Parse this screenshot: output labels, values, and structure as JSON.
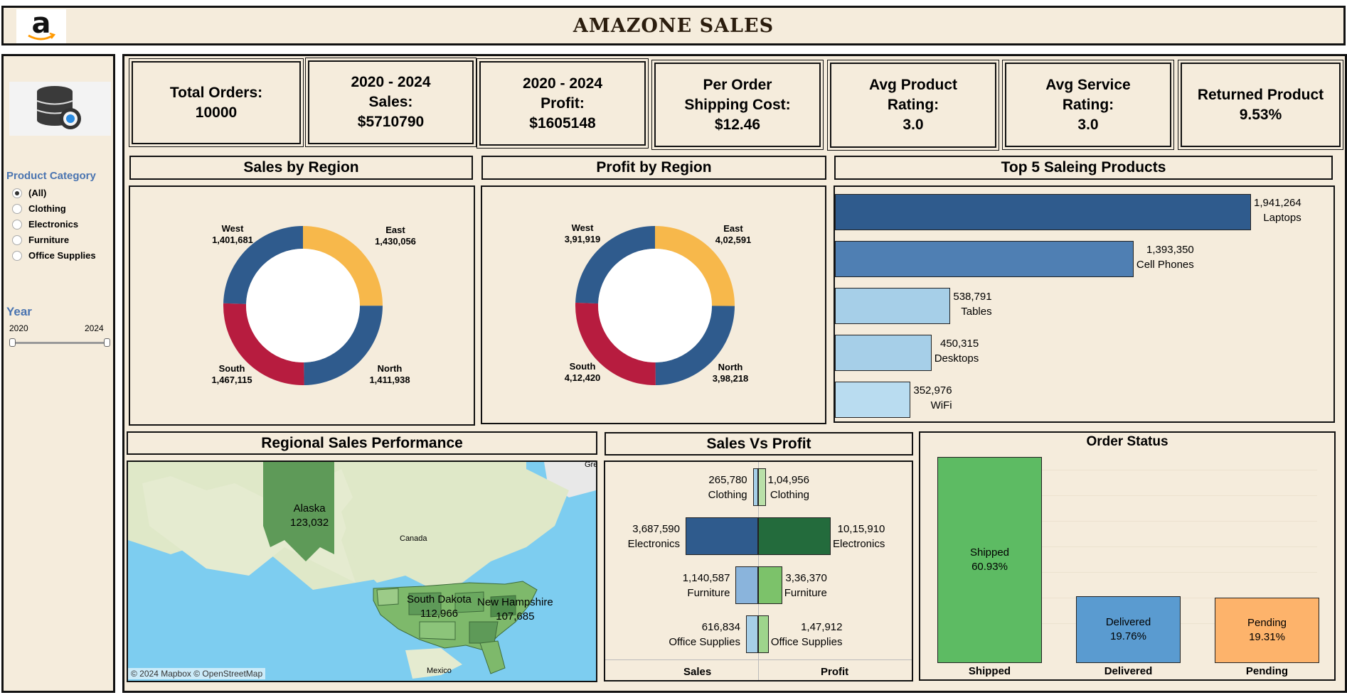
{
  "header": {
    "title": "AMAZONE SALES"
  },
  "sidebar": {
    "category_title": "Product Category",
    "categories": [
      "(All)",
      "Clothing",
      "Electronics",
      "Furniture",
      "Office Supplies"
    ],
    "year_title": "Year",
    "year_min": "2020",
    "year_max": "2024"
  },
  "kpis": [
    {
      "line1": "Total Orders:",
      "line2": "10000",
      "line3": ""
    },
    {
      "line1": "2020 - 2024",
      "line2": "Sales:",
      "line3": "$5710790"
    },
    {
      "line1": "2020 - 2024",
      "line2": "Profit:",
      "line3": "$1605148"
    },
    {
      "line1": "Per Order",
      "line2": "Shipping Cost:",
      "line3": "$12.46"
    },
    {
      "line1": "Avg Product",
      "line2": "Rating:",
      "line3": "3.0"
    },
    {
      "line1": "Avg Service",
      "line2": "Rating:",
      "line3": "3.0"
    },
    {
      "line1": "Returned Product",
      "line2": "9.53%",
      "line3": ""
    }
  ],
  "sales_by_region": {
    "title": "Sales by Region",
    "regions": [
      {
        "name": "East",
        "value": "1,430,056"
      },
      {
        "name": "North",
        "value": "1,411,938"
      },
      {
        "name": "South",
        "value": "1,467,115"
      },
      {
        "name": "West",
        "value": "1,401,681"
      }
    ]
  },
  "profit_by_region": {
    "title": "Profit by Region",
    "regions": [
      {
        "name": "East",
        "value": "4,02,591"
      },
      {
        "name": "North",
        "value": "3,98,218"
      },
      {
        "name": "South",
        "value": "4,12,420"
      },
      {
        "name": "West",
        "value": "3,91,919"
      }
    ]
  },
  "top_products": {
    "title": "Top 5 Saleing Products",
    "items": [
      {
        "value": "1,941,264",
        "name": "Laptops"
      },
      {
        "value": "1,393,350",
        "name": "Cell Phones"
      },
      {
        "value": "538,791",
        "name": "Tables"
      },
      {
        "value": "450,315",
        "name": "Desktops"
      },
      {
        "value": "352,976",
        "name": "WiFi"
      }
    ]
  },
  "regional_map": {
    "title": "Regional Sales Performance",
    "labels": [
      {
        "name": "Alaska",
        "value": "123,032"
      },
      {
        "name": "South Dakota",
        "value": "112,966"
      },
      {
        "name": "New Hampshire",
        "value": "107,685"
      }
    ],
    "place_names": [
      "Canada",
      "Mexico",
      "Gre"
    ],
    "attribution": "© 2024 Mapbox © OpenStreetMap"
  },
  "sales_vs_profit": {
    "title": "Sales Vs Profit",
    "rows": [
      {
        "category": "Clothing",
        "sales": "265,780",
        "profit": "1,04,956"
      },
      {
        "category": "Electronics",
        "sales": "3,687,590",
        "profit": "10,15,910"
      },
      {
        "category": "Furniture",
        "sales": "1,140,587",
        "profit": "3,36,370"
      },
      {
        "category": "Office Supplies",
        "sales": "616,834",
        "profit": "1,47,912"
      }
    ],
    "left_axis": "Sales",
    "right_axis": "Profit"
  },
  "order_status": {
    "title": "Order Status",
    "items": [
      {
        "name": "Shipped",
        "pct": "60.93%"
      },
      {
        "name": "Delivered",
        "pct": "19.76%"
      },
      {
        "name": "Pending",
        "pct": "19.31%"
      }
    ]
  },
  "chart_data": [
    {
      "type": "pie",
      "title": "Sales by Region",
      "categories": [
        "East",
        "North",
        "South",
        "West"
      ],
      "values": [
        1430056,
        1411938,
        1467115,
        1401681
      ],
      "colors": [
        "#f7b84b",
        "#2f5b8d",
        "#b71c3f",
        "#2f5b8d"
      ]
    },
    {
      "type": "pie",
      "title": "Profit by Region",
      "categories": [
        "East",
        "North",
        "South",
        "West"
      ],
      "values": [
        402591,
        398218,
        412420,
        391919
      ],
      "colors": [
        "#f7b84b",
        "#2f5b8d",
        "#b71c3f",
        "#2f5b8d"
      ]
    },
    {
      "type": "bar",
      "title": "Top 5 Saleing Products",
      "categories": [
        "Laptops",
        "Cell Phones",
        "Tables",
        "Desktops",
        "WiFi"
      ],
      "values": [
        1941264,
        1393350,
        538791,
        450315,
        352976
      ]
    },
    {
      "type": "bar",
      "title": "Sales Vs Profit",
      "categories": [
        "Clothing",
        "Electronics",
        "Furniture",
        "Office Supplies"
      ],
      "series": [
        {
          "name": "Sales",
          "values": [
            265780,
            3687590,
            1140587,
            616834
          ]
        },
        {
          "name": "Profit",
          "values": [
            104956,
            1015910,
            336370,
            147912
          ]
        }
      ]
    },
    {
      "type": "bar",
      "title": "Order Status",
      "categories": [
        "Shipped",
        "Delivered",
        "Pending"
      ],
      "values": [
        60.93,
        19.76,
        19.31
      ]
    }
  ]
}
